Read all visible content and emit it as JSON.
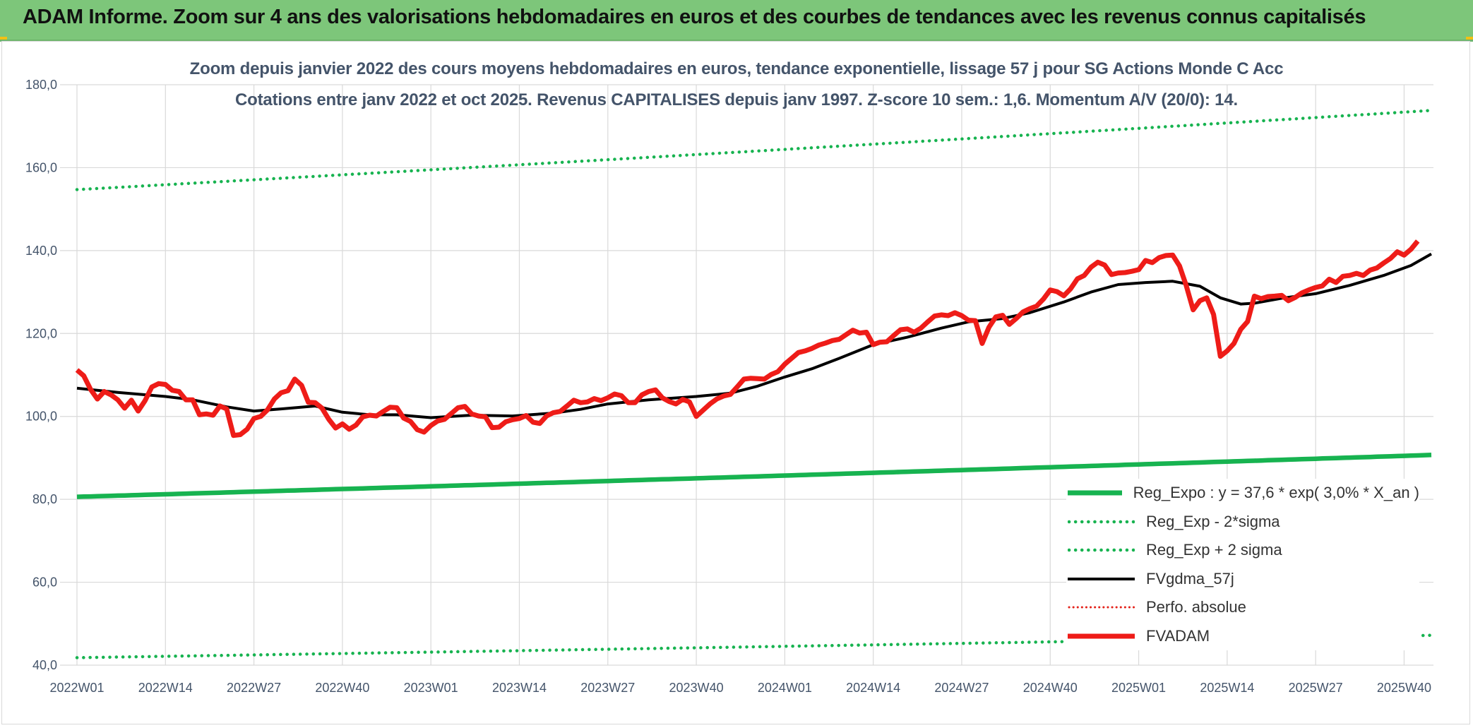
{
  "header": {
    "title": "ADAM Informe. Zoom sur 4 ans des valorisations hebdomadaires en euros et des courbes de tendances avec les revenus connus capitalisés"
  },
  "chart_data": {
    "type": "line",
    "title": "Zoom depuis janvier 2022  des cours moyens hebdomadaires en euros, tendance exponentielle, lissage 57 j pour SG Actions Monde C Acc",
    "subtitle": "Cotations entre janv 2022 et oct 2025. Revenus CAPITALISES depuis janv 1997. Z-score 10 sem.: 1,6. Momentum A/V (20/0): 14.",
    "ylim": [
      40,
      180
    ],
    "y_ticks": [
      "40,0",
      "60,0",
      "80,0",
      "100,0",
      "120,0",
      "140,0",
      "160,0",
      "180,0"
    ],
    "x_ticks": [
      "2022W01",
      "2022W14",
      "2022W27",
      "2022W40",
      "2023W01",
      "2023W14",
      "2023W27",
      "2023W40",
      "2024W01",
      "2024W14",
      "2024W27",
      "2024W40",
      "2025W01",
      "2025W14",
      "2025W27",
      "2025W40"
    ],
    "x_tick_weeks": [
      0,
      13,
      26,
      39,
      52,
      65,
      78,
      91,
      104,
      117,
      130,
      143,
      156,
      169,
      182,
      195
    ],
    "n_weeks": 199,
    "legend_position": "bottom-right",
    "series": [
      {
        "name": "Reg_Expo : y = 37,6 * exp( 3,0% *  X_an )",
        "style": "solid-thick",
        "color": "#17b350",
        "start": 80.6,
        "end": 90.7
      },
      {
        "name": "Reg_Exp - 2*sigma",
        "style": "dotted",
        "color": "#17b350",
        "start": 41.8,
        "end": 47.2
      },
      {
        "name": "Reg_Exp + 2 sigma",
        "style": "dotted",
        "color": "#17b350",
        "start": 154.7,
        "end": 173.8
      },
      {
        "name": "FVgdma_57j",
        "style": "solid",
        "color": "#000000",
        "points": [
          [
            0,
            106.8
          ],
          [
            6,
            105.8
          ],
          [
            13,
            104.8
          ],
          [
            17,
            104.0
          ],
          [
            22,
            102.3
          ],
          [
            26,
            101.3
          ],
          [
            30,
            101.8
          ],
          [
            35,
            102.5
          ],
          [
            39,
            101.0
          ],
          [
            43,
            100.4
          ],
          [
            47,
            100.4
          ],
          [
            52,
            99.7
          ],
          [
            58,
            100.3
          ],
          [
            64,
            100.1
          ],
          [
            70,
            100.8
          ],
          [
            74,
            101.7
          ],
          [
            78,
            103.0
          ],
          [
            84,
            104.0
          ],
          [
            91,
            104.8
          ],
          [
            96,
            105.6
          ],
          [
            100,
            107.3
          ],
          [
            104,
            109.5
          ],
          [
            108,
            111.5
          ],
          [
            112,
            114.0
          ],
          [
            117,
            117.3
          ],
          [
            122,
            119.1
          ],
          [
            127,
            121.3
          ],
          [
            131,
            122.8
          ],
          [
            136,
            123.6
          ],
          [
            140,
            125.0
          ],
          [
            145,
            127.6
          ],
          [
            149,
            130.0
          ],
          [
            153,
            131.8
          ],
          [
            157,
            132.3
          ],
          [
            161,
            132.6
          ],
          [
            165,
            131.4
          ],
          [
            168,
            128.6
          ],
          [
            171,
            127.1
          ],
          [
            173,
            127.3
          ],
          [
            177,
            128.5
          ],
          [
            182,
            129.6
          ],
          [
            187,
            131.6
          ],
          [
            192,
            134.0
          ],
          [
            196,
            136.4
          ],
          [
            199,
            139.2
          ]
        ]
      },
      {
        "name": "Perfo. absolue",
        "style": "dotted",
        "color": "#e32119",
        "points": []
      },
      {
        "name": "FVADAM",
        "style": "solid-thick",
        "color": "#ee1c18",
        "points": [
          [
            0,
            111.2
          ],
          [
            1,
            109.8
          ],
          [
            2,
            106.5
          ],
          [
            3,
            104.2
          ],
          [
            4,
            106.0
          ],
          [
            5,
            105.2
          ],
          [
            6,
            104.0
          ],
          [
            7,
            102.0
          ],
          [
            8,
            103.9
          ],
          [
            9,
            101.3
          ],
          [
            10,
            103.8
          ],
          [
            11,
            107.1
          ],
          [
            12,
            107.9
          ],
          [
            13,
            107.7
          ],
          [
            14,
            106.3
          ],
          [
            15,
            106.0
          ],
          [
            16,
            104.0
          ],
          [
            17,
            104.0
          ],
          [
            18,
            100.4
          ],
          [
            19,
            100.6
          ],
          [
            20,
            100.3
          ],
          [
            21,
            102.5
          ],
          [
            22,
            101.8
          ],
          [
            23,
            95.4
          ],
          [
            24,
            95.6
          ],
          [
            25,
            96.9
          ],
          [
            26,
            99.5
          ],
          [
            27,
            100.0
          ],
          [
            28,
            101.6
          ],
          [
            29,
            104.2
          ],
          [
            30,
            105.7
          ],
          [
            31,
            106.2
          ],
          [
            32,
            109.0
          ],
          [
            33,
            107.5
          ],
          [
            34,
            103.4
          ],
          [
            35,
            103.3
          ],
          [
            36,
            102.0
          ],
          [
            37,
            99.3
          ],
          [
            38,
            97.2
          ],
          [
            39,
            98.2
          ],
          [
            40,
            96.9
          ],
          [
            41,
            97.9
          ],
          [
            42,
            99.9
          ],
          [
            43,
            100.3
          ],
          [
            44,
            100.1
          ],
          [
            45,
            101.2
          ],
          [
            46,
            102.2
          ],
          [
            47,
            102.1
          ],
          [
            48,
            99.6
          ],
          [
            49,
            98.8
          ],
          [
            50,
            96.8
          ],
          [
            51,
            96.2
          ],
          [
            52,
            97.8
          ],
          [
            53,
            98.9
          ],
          [
            54,
            99.3
          ],
          [
            55,
            100.7
          ],
          [
            56,
            102.1
          ],
          [
            57,
            102.4
          ],
          [
            58,
            100.6
          ],
          [
            59,
            100.1
          ],
          [
            60,
            99.9
          ],
          [
            61,
            97.3
          ],
          [
            62,
            97.4
          ],
          [
            63,
            98.7
          ],
          [
            64,
            99.2
          ],
          [
            65,
            99.5
          ],
          [
            66,
            100.2
          ],
          [
            67,
            98.6
          ],
          [
            68,
            98.3
          ],
          [
            69,
            100.1
          ],
          [
            70,
            100.9
          ],
          [
            71,
            101.2
          ],
          [
            72,
            102.5
          ],
          [
            73,
            103.9
          ],
          [
            74,
            103.3
          ],
          [
            75,
            103.5
          ],
          [
            76,
            104.3
          ],
          [
            77,
            103.8
          ],
          [
            78,
            104.5
          ],
          [
            79,
            105.4
          ],
          [
            80,
            105.0
          ],
          [
            81,
            103.3
          ],
          [
            82,
            103.3
          ],
          [
            83,
            105.2
          ],
          [
            84,
            106.0
          ],
          [
            85,
            106.4
          ],
          [
            86,
            104.5
          ],
          [
            87,
            103.6
          ],
          [
            88,
            103.0
          ],
          [
            89,
            104.1
          ],
          [
            90,
            103.5
          ],
          [
            91,
            100.0
          ],
          [
            92,
            101.5
          ],
          [
            93,
            103.0
          ],
          [
            94,
            104.2
          ],
          [
            95,
            104.9
          ],
          [
            96,
            105.3
          ],
          [
            97,
            107.1
          ],
          [
            98,
            109.0
          ],
          [
            99,
            109.2
          ],
          [
            100,
            109.1
          ],
          [
            101,
            109.0
          ],
          [
            102,
            110.1
          ],
          [
            103,
            110.8
          ],
          [
            104,
            112.6
          ],
          [
            105,
            114.0
          ],
          [
            106,
            115.4
          ],
          [
            107,
            115.8
          ],
          [
            108,
            116.4
          ],
          [
            109,
            117.2
          ],
          [
            110,
            117.7
          ],
          [
            111,
            118.3
          ],
          [
            112,
            118.6
          ],
          [
            113,
            119.7
          ],
          [
            114,
            120.8
          ],
          [
            115,
            120.1
          ],
          [
            116,
            120.3
          ],
          [
            117,
            117.3
          ],
          [
            118,
            117.9
          ],
          [
            119,
            118.0
          ],
          [
            120,
            119.5
          ],
          [
            121,
            120.9
          ],
          [
            122,
            121.1
          ],
          [
            123,
            120.3
          ],
          [
            124,
            121.3
          ],
          [
            125,
            122.8
          ],
          [
            126,
            124.2
          ],
          [
            127,
            124.5
          ],
          [
            128,
            124.3
          ],
          [
            129,
            125.0
          ],
          [
            130,
            124.3
          ],
          [
            131,
            123.2
          ],
          [
            132,
            123.1
          ],
          [
            133,
            117.6
          ],
          [
            134,
            121.5
          ],
          [
            135,
            124.0
          ],
          [
            136,
            124.4
          ],
          [
            137,
            122.2
          ],
          [
            138,
            123.6
          ],
          [
            139,
            125.2
          ],
          [
            140,
            126.0
          ],
          [
            141,
            126.6
          ],
          [
            142,
            128.3
          ],
          [
            143,
            130.5
          ],
          [
            144,
            130.1
          ],
          [
            145,
            129.1
          ],
          [
            146,
            130.8
          ],
          [
            147,
            133.2
          ],
          [
            148,
            134.0
          ],
          [
            149,
            136.0
          ],
          [
            150,
            137.2
          ],
          [
            151,
            136.5
          ],
          [
            152,
            134.2
          ],
          [
            153,
            134.6
          ],
          [
            154,
            134.7
          ],
          [
            155,
            135.0
          ],
          [
            156,
            135.4
          ],
          [
            157,
            137.6
          ],
          [
            158,
            137.1
          ],
          [
            159,
            138.3
          ],
          [
            160,
            138.8
          ],
          [
            161,
            138.9
          ],
          [
            162,
            136.3
          ],
          [
            163,
            131.5
          ],
          [
            164,
            125.7
          ],
          [
            165,
            127.9
          ],
          [
            166,
            128.6
          ],
          [
            167,
            124.6
          ],
          [
            168,
            114.5
          ],
          [
            169,
            115.8
          ],
          [
            170,
            117.6
          ],
          [
            171,
            121.0
          ],
          [
            172,
            122.9
          ],
          [
            173,
            129.0
          ],
          [
            174,
            128.4
          ],
          [
            175,
            128.9
          ],
          [
            176,
            129.0
          ],
          [
            177,
            129.2
          ],
          [
            178,
            127.9
          ],
          [
            179,
            128.7
          ],
          [
            180,
            129.8
          ],
          [
            181,
            130.5
          ],
          [
            182,
            131.1
          ],
          [
            183,
            131.5
          ],
          [
            184,
            133.1
          ],
          [
            185,
            132.3
          ],
          [
            186,
            133.8
          ],
          [
            187,
            134.0
          ],
          [
            188,
            134.5
          ],
          [
            189,
            134.0
          ],
          [
            190,
            135.3
          ],
          [
            191,
            135.8
          ],
          [
            192,
            137.0
          ],
          [
            193,
            138.1
          ],
          [
            194,
            139.7
          ],
          [
            195,
            138.9
          ],
          [
            196,
            140.3
          ],
          [
            197,
            142.3
          ]
        ]
      }
    ]
  }
}
